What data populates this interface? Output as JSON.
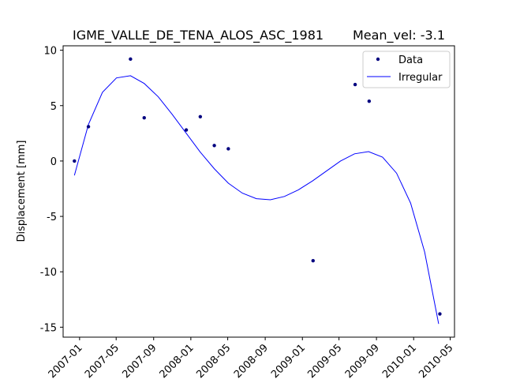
{
  "chart_data": {
    "type": "scatter",
    "title": "IGME_VALLE_DE_TENA_ALOS_ASC_1981",
    "subtitle": "Mean_vel: -3.1",
    "xlabel": "",
    "ylabel": "Displacement [mm]",
    "xlim": [
      "2006-11-08",
      "2010-05-15"
    ],
    "ylim": [
      -15.9,
      10.4
    ],
    "grid": false,
    "legend_position": "top-right",
    "x_ticks": [
      "2007-01",
      "2007-05",
      "2007-09",
      "2008-01",
      "2008-05",
      "2008-09",
      "2009-01",
      "2009-05",
      "2009-09",
      "2010-01",
      "2010-05"
    ],
    "y_ticks": [
      10,
      5,
      0,
      -5,
      -10,
      -15
    ],
    "series": [
      {
        "name": "Data",
        "kind": "scatter",
        "color": "#00007f",
        "points": [
          {
            "x": "2006-12-15",
            "y": 0.0
          },
          {
            "x": "2007-01-30",
            "y": 3.1
          },
          {
            "x": "2007-06-17",
            "y": 9.2
          },
          {
            "x": "2007-08-01",
            "y": 3.9
          },
          {
            "x": "2007-12-17",
            "y": 2.8
          },
          {
            "x": "2008-02-01",
            "y": 4.0
          },
          {
            "x": "2008-03-18",
            "y": 1.4
          },
          {
            "x": "2008-05-03",
            "y": 1.1
          },
          {
            "x": "2009-02-05",
            "y": -9.0
          },
          {
            "x": "2009-06-23",
            "y": 6.9
          },
          {
            "x": "2009-08-08",
            "y": 5.4
          },
          {
            "x": "2010-03-28",
            "y": -13.8
          }
        ]
      },
      {
        "name": "Irregular",
        "kind": "line",
        "color": "#0000ff",
        "points": [
          {
            "x": "2006-12-15",
            "y": -1.3
          },
          {
            "x": "2007-01-30",
            "y": 3.3
          },
          {
            "x": "2007-03-17",
            "y": 6.2
          },
          {
            "x": "2007-05-02",
            "y": 7.5
          },
          {
            "x": "2007-06-17",
            "y": 7.7
          },
          {
            "x": "2007-08-01",
            "y": 7.0
          },
          {
            "x": "2007-09-16",
            "y": 5.8
          },
          {
            "x": "2007-11-01",
            "y": 4.2
          },
          {
            "x": "2007-12-17",
            "y": 2.5
          },
          {
            "x": "2008-02-01",
            "y": 0.8
          },
          {
            "x": "2008-03-18",
            "y": -0.7
          },
          {
            "x": "2008-05-03",
            "y": -2.0
          },
          {
            "x": "2008-06-18",
            "y": -2.9
          },
          {
            "x": "2008-08-03",
            "y": -3.4
          },
          {
            "x": "2008-09-18",
            "y": -3.5
          },
          {
            "x": "2008-11-03",
            "y": -3.2
          },
          {
            "x": "2008-12-19",
            "y": -2.6
          },
          {
            "x": "2009-02-03",
            "y": -1.8
          },
          {
            "x": "2009-03-21",
            "y": -0.9
          },
          {
            "x": "2009-05-06",
            "y": 0.0
          },
          {
            "x": "2009-06-21",
            "y": 0.65
          },
          {
            "x": "2009-08-06",
            "y": 0.85
          },
          {
            "x": "2009-09-21",
            "y": 0.35
          },
          {
            "x": "2009-11-06",
            "y": -1.1
          },
          {
            "x": "2009-12-22",
            "y": -3.8
          },
          {
            "x": "2010-02-06",
            "y": -8.2
          },
          {
            "x": "2010-03-24",
            "y": -14.7
          }
        ]
      }
    ]
  }
}
